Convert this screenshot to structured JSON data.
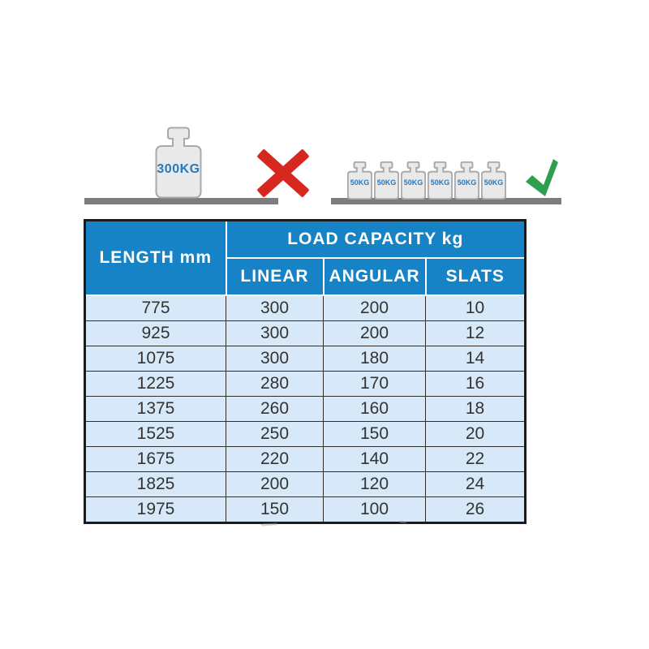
{
  "illustration": {
    "overload_weight_label": "300KG",
    "small_weight_labels": [
      "50KG",
      "50KG",
      "50KG",
      "50KG",
      "50KG",
      "50KG"
    ],
    "icons": {
      "x_mark": "x-mark-icon",
      "check_mark": "check-mark-icon"
    },
    "colors": {
      "weight_fill": "#e9e9e9",
      "weight_border": "#a9a9a9",
      "weight_text_blue": "#2878bc",
      "platform_gray": "#7d7d7d",
      "x_red": "#d6281e",
      "check_green": "#2f9e4d"
    }
  },
  "table": {
    "length_header": "LENGTH mm",
    "capacity_header": "LOAD CAPACITY kg",
    "sub_headers": [
      "LINEAR",
      "ANGULAR",
      "SLATS"
    ],
    "colors": {
      "header_bg": "#1583c5",
      "header_text": "#ffffff",
      "row_bg": "#d7e9f8",
      "cell_text": "#333333",
      "border_dark": "#1b1b1b"
    }
  },
  "chart_data": {
    "type": "table",
    "title": "LOAD CAPACITY kg",
    "columns": [
      "LENGTH mm",
      "LINEAR",
      "ANGULAR",
      "SLATS"
    ],
    "rows": [
      [
        775,
        300,
        200,
        10
      ],
      [
        925,
        300,
        200,
        12
      ],
      [
        1075,
        300,
        180,
        14
      ],
      [
        1225,
        280,
        170,
        16
      ],
      [
        1375,
        260,
        160,
        18
      ],
      [
        1525,
        250,
        150,
        20
      ],
      [
        1675,
        220,
        140,
        22
      ],
      [
        1825,
        200,
        120,
        24
      ],
      [
        1975,
        150,
        100,
        26
      ]
    ]
  }
}
